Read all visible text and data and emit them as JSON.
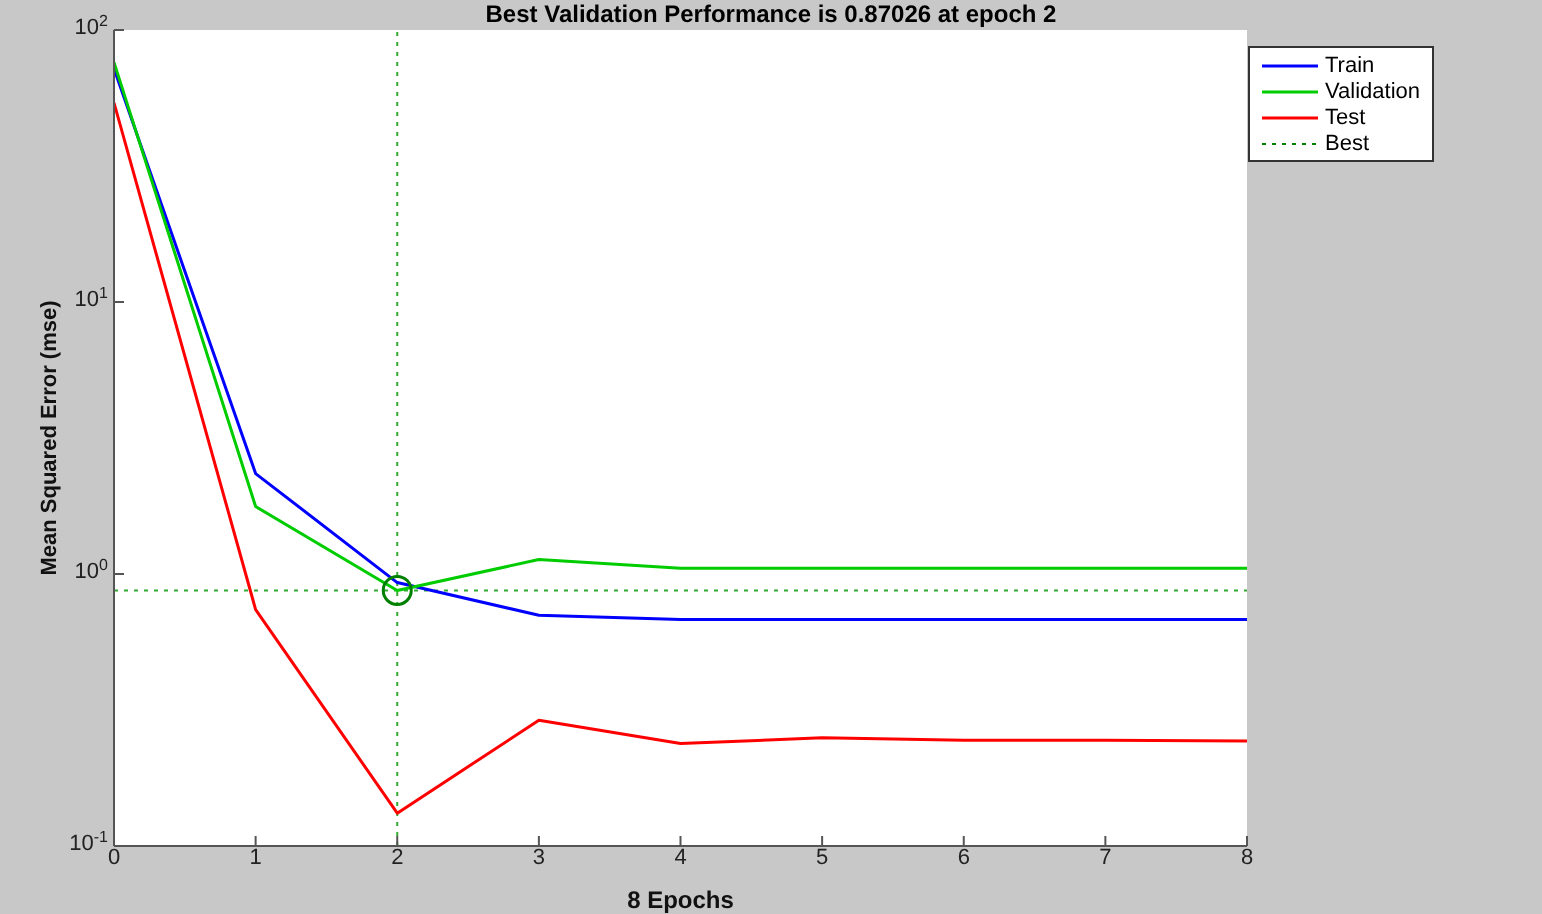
{
  "chart_data": {
    "type": "line",
    "title": "Best Validation Performance is 0.87026 at epoch 2",
    "xlabel": "8 Epochs",
    "ylabel": "Mean Squared Error  (mse)",
    "x": [
      0,
      1,
      2,
      3,
      4,
      5,
      6,
      7,
      8
    ],
    "series": [
      {
        "name": "Train",
        "color": "#0000ff",
        "values": [
          72,
          2.34,
          0.93,
          0.705,
          0.68,
          0.68,
          0.68,
          0.68,
          0.68
        ]
      },
      {
        "name": "Validation",
        "color": "#00cc00",
        "values": [
          76,
          1.77,
          0.87026,
          1.13,
          1.05,
          1.05,
          1.05,
          1.05,
          1.05
        ]
      },
      {
        "name": "Test",
        "color": "#ff0000",
        "values": [
          54,
          0.74,
          0.132,
          0.29,
          0.238,
          0.25,
          0.245,
          0.245,
          0.243
        ]
      },
      {
        "name": "Best",
        "type": "scatter",
        "marker": "circle",
        "line_style": "dotted",
        "color": "#008000",
        "x": [
          2
        ],
        "values": [
          0.87026
        ]
      }
    ],
    "ref_lines": [
      {
        "axis": "x",
        "value": 2,
        "color": "#33aa33",
        "line_style": "dotted"
      },
      {
        "axis": "y",
        "value": 0.87026,
        "color": "#33aa33",
        "line_style": "dotted"
      }
    ],
    "log": "y",
    "xlim": [
      0,
      8
    ],
    "xticks": [
      0,
      1,
      2,
      3,
      4,
      5,
      6,
      7,
      8
    ],
    "ylim": [
      0.1,
      100
    ],
    "yticks": [
      {
        "value": 0.1,
        "label": "10$^{-1}$"
      },
      {
        "value": 1,
        "label": "10$^{0}$"
      },
      {
        "value": 10,
        "label": "10$^{1}$"
      },
      {
        "value": 100,
        "label": "10$^{2}$"
      }
    ],
    "grid": false,
    "legend": "top right",
    "marker": "none",
    "line_style": "solid"
  }
}
